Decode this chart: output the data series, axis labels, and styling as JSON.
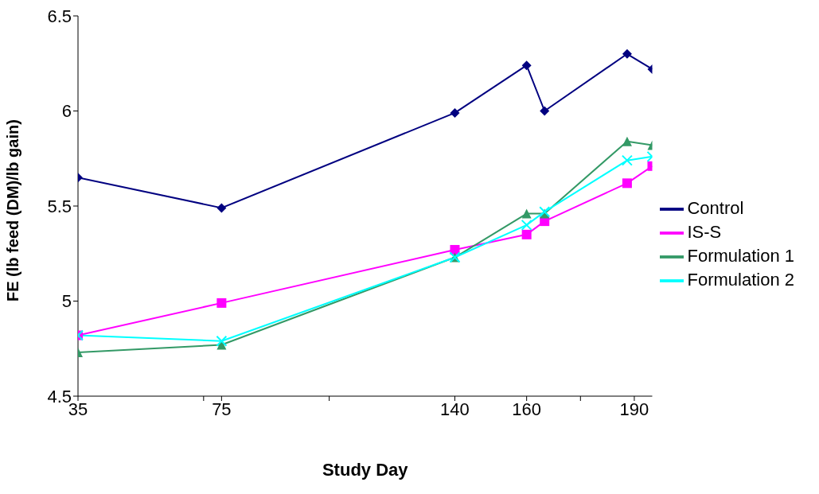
{
  "chart_data": {
    "type": "line",
    "xlabel": "Study Day",
    "ylabel": "FE (lb feed (DM)/lb gain)",
    "x": [
      35,
      75,
      140,
      160,
      165,
      188,
      195
    ],
    "xlim": [
      35,
      195
    ],
    "xticks": [
      {
        "value": 35,
        "label": "35"
      },
      {
        "value": 70,
        "label": null
      },
      {
        "value": 75,
        "label": "75"
      },
      {
        "value": 105,
        "label": null
      },
      {
        "value": 140,
        "label": "140"
      },
      {
        "value": 160,
        "label": "160"
      },
      {
        "value": 175,
        "label": null
      },
      {
        "value": 190,
        "label": "190"
      }
    ],
    "ylim": [
      4.5,
      6.5
    ],
    "yticks": [
      4.5,
      5,
      5.5,
      6,
      6.5
    ],
    "grid": false,
    "legend": "right",
    "series": [
      {
        "name": "Control",
        "color": "#000080",
        "marker": "diamond",
        "values": [
          5.65,
          5.49,
          5.99,
          6.24,
          6.0,
          6.3,
          6.22
        ]
      },
      {
        "name": "IS-S",
        "color": "#ff00ff",
        "marker": "square",
        "values": [
          4.82,
          4.99,
          5.27,
          5.35,
          5.42,
          5.62,
          5.71
        ]
      },
      {
        "name": "Formulation 1",
        "color": "#339966",
        "marker": "triangle",
        "values": [
          4.73,
          4.77,
          5.23,
          5.46,
          5.46,
          5.84,
          5.82
        ]
      },
      {
        "name": "Formulation 2",
        "color": "#00ffff",
        "marker": "cross",
        "values": [
          4.82,
          4.79,
          5.23,
          5.4,
          5.47,
          5.74,
          5.76
        ]
      }
    ]
  }
}
